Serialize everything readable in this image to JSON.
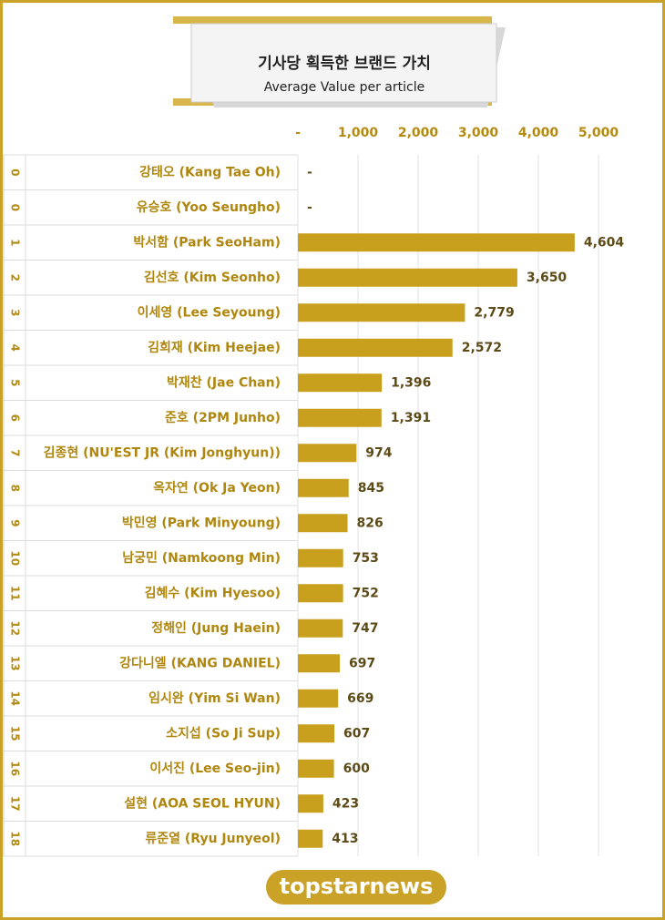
{
  "logo": "topstarnews",
  "chart_data": {
    "type": "bar",
    "orientation": "horizontal",
    "title": "기사당 획득한 브랜드 가치",
    "subtitle": "Average Value per article",
    "ranks": [
      "0",
      "0",
      "1",
      "2",
      "3",
      "4",
      "5",
      "6",
      "7",
      "8",
      "9",
      "10",
      "11",
      "12",
      "13",
      "14",
      "15",
      "16",
      "17",
      "18"
    ],
    "categories": [
      "강태오 (Kang Tae Oh)",
      "유승호 (Yoo Seungho)",
      "박서함 (Park SeoHam)",
      "김선호 (Kim Seonho)",
      "이세영 (Lee Seyoung)",
      "김희재 (Kim Heejae)",
      "박재찬 (Jae Chan)",
      "준호 (2PM Junho)",
      "김종현 (NU'EST JR (Kim Jonghyun))",
      "옥자연 (Ok Ja Yeon)",
      "박민영 (Park Minyoung)",
      "남궁민 (Namkoong Min)",
      "김혜수 (Kim Hyesoo)",
      "정해인 (Jung Haein)",
      "강다니엘 (KANG DANIEL)",
      "임시완 (Yim Si Wan)",
      "소지섭 (So Ji Sup)",
      "이서진 (Lee Seo-jin)",
      "설현 (AOA SEOL HYUN)",
      "류준열 (Ryu Junyeol)"
    ],
    "values": [
      0,
      0,
      4604,
      3650,
      2779,
      2572,
      1396,
      1391,
      974,
      845,
      826,
      753,
      752,
      747,
      697,
      669,
      607,
      600,
      423,
      413
    ],
    "value_labels": [
      "-",
      "-",
      "4,604",
      "3,650",
      "2,779",
      "2,572",
      "1,396",
      "1,391",
      "974",
      "845",
      "826",
      "753",
      "752",
      "747",
      "697",
      "669",
      "607",
      "600",
      "423",
      "413"
    ],
    "color": "#c9a01e",
    "xlim": [
      0,
      5000
    ],
    "xticks": [
      {
        "value": 0,
        "label": "-"
      },
      {
        "value": 1000,
        "label": "1,000"
      },
      {
        "value": 2000,
        "label": "2,000"
      },
      {
        "value": 3000,
        "label": "3,000"
      },
      {
        "value": 4000,
        "label": "4,000"
      },
      {
        "value": 5000,
        "label": "5,000"
      }
    ],
    "grid": true
  }
}
